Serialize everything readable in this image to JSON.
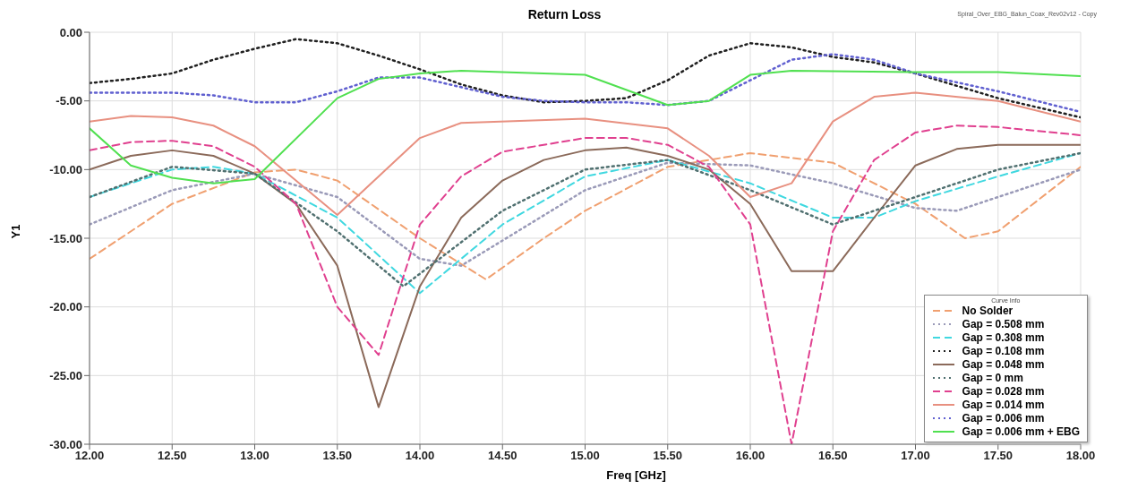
{
  "chart_data": {
    "type": "line",
    "title": "Return Loss",
    "xlabel": "Freq [GHz]",
    "ylabel": "Y1",
    "legend_title": "Curve Info",
    "annotations": [
      "Spiral_Over_EBG_Balun_Coax_Rev02v12 - Copy"
    ],
    "xlim": [
      12,
      18
    ],
    "xticks": [
      {
        "value": 12,
        "label": "12.00"
      },
      {
        "value": 12.5,
        "label": "12.50"
      },
      {
        "value": 13,
        "label": "13.00"
      },
      {
        "value": 13.5,
        "label": "13.50"
      },
      {
        "value": 14,
        "label": "14.00"
      },
      {
        "value": 14.5,
        "label": "14.50"
      },
      {
        "value": 15,
        "label": "15.00"
      },
      {
        "value": 15.5,
        "label": "15.50"
      },
      {
        "value": 16,
        "label": "16.00"
      },
      {
        "value": 16.5,
        "label": "16.50"
      },
      {
        "value": 17,
        "label": "17.00"
      },
      {
        "value": 17.5,
        "label": "17.50"
      },
      {
        "value": 18,
        "label": "18.00"
      }
    ],
    "ylim": [
      -30,
      0
    ],
    "yticks": [
      {
        "value": -30,
        "label": "-30.00"
      },
      {
        "value": -25,
        "label": "-25.00"
      },
      {
        "value": -20,
        "label": "-20.00"
      },
      {
        "value": -15,
        "label": "-15.00"
      },
      {
        "value": -10,
        "label": "-10.00"
      },
      {
        "value": -5,
        "label": "-5.00"
      },
      {
        "value": 0,
        "label": "0.00"
      }
    ],
    "grid": true,
    "legend": "bottom right",
    "marker": "none",
    "series": [
      {
        "name": "No Solder",
        "color": "#f0a070",
        "line_style": "dashed",
        "x": [
          12,
          12.5,
          13,
          13.25,
          13.5,
          14,
          14.4,
          14.75,
          15,
          15.5,
          16,
          16.5,
          17,
          17.3,
          17.5,
          18
        ],
        "values": [
          -16.5,
          -12.5,
          -10.2,
          -10,
          -10.8,
          -15,
          -18,
          -15,
          -13,
          -9.8,
          -8.8,
          -9.5,
          -12.5,
          -15,
          -14.5,
          -9.8
        ]
      },
      {
        "name": "Gap = 0.508 mm",
        "color": "#9a9ab8",
        "line_style": "dotted",
        "x": [
          12,
          12.5,
          13,
          13.5,
          14,
          14.25,
          15,
          15.5,
          16,
          16.5,
          17,
          17.25,
          17.5,
          18
        ],
        "values": [
          -14,
          -11.5,
          -10.3,
          -12,
          -16.5,
          -17,
          -11.5,
          -9.5,
          -9.7,
          -11,
          -12.8,
          -13,
          -12,
          -10
        ]
      },
      {
        "name": "Gap = 0.308 mm",
        "color": "#40d8e0",
        "line_style": "dashed",
        "x": [
          12,
          12.5,
          12.75,
          13,
          13.5,
          14,
          14.5,
          15,
          15.5,
          16,
          16.5,
          16.75,
          17,
          17.5,
          18
        ],
        "values": [
          -12,
          -10,
          -9.8,
          -10.3,
          -13.5,
          -19,
          -14,
          -10.5,
          -9.3,
          -11,
          -13.5,
          -13.5,
          -12.3,
          -10.5,
          -8.8
        ]
      },
      {
        "name": "Gap = 0.108 mm",
        "color": "#202020",
        "line_style": "dotted",
        "x": [
          12,
          12.25,
          12.5,
          12.75,
          13,
          13.25,
          13.5,
          13.75,
          14,
          14.25,
          14.5,
          14.75,
          15,
          15.25,
          15.5,
          15.75,
          16,
          16.25,
          16.5,
          16.75,
          17,
          17.5,
          18
        ],
        "values": [
          -3.7,
          -3.4,
          -3,
          -2,
          -1.2,
          -0.5,
          -0.8,
          -1.7,
          -2.7,
          -3.8,
          -4.6,
          -5.1,
          -5,
          -4.8,
          -3.5,
          -1.7,
          -0.8,
          -1.1,
          -1.8,
          -2.2,
          -3,
          -4.8,
          -6.2
        ]
      },
      {
        "name": "Gap = 0.048 mm",
        "color": "#8b6a5a",
        "line_style": "solid",
        "x": [
          12,
          12.25,
          12.5,
          12.75,
          13,
          13.25,
          13.5,
          13.75,
          14,
          14.25,
          14.5,
          14.75,
          15,
          15.25,
          15.5,
          15.75,
          16,
          16.25,
          16.5,
          16.75,
          17,
          17.25,
          17.5,
          18
        ],
        "values": [
          -10,
          -9,
          -8.6,
          -9,
          -10.3,
          -12.5,
          -17,
          -27.3,
          -18.5,
          -13.5,
          -10.8,
          -9.3,
          -8.6,
          -8.4,
          -9,
          -10,
          -12.5,
          -17.4,
          -17.4,
          -13.5,
          -9.7,
          -8.5,
          -8.2,
          -8.2
        ]
      },
      {
        "name": "Gap = 0 mm",
        "color": "#507070",
        "line_style": "dotted",
        "x": [
          12,
          12.5,
          13,
          13.5,
          13.9,
          14.5,
          15,
          15.5,
          16,
          16.5,
          17,
          17.5,
          18
        ],
        "values": [
          -12,
          -9.8,
          -10.3,
          -14.5,
          -18.5,
          -13,
          -10,
          -9.3,
          -11.5,
          -14,
          -12,
          -10,
          -8.8
        ]
      },
      {
        "name": "Gap = 0.028 mm",
        "color": "#e0408f",
        "line_style": "dashed",
        "x": [
          12,
          12.25,
          12.5,
          12.75,
          13,
          13.25,
          13.5,
          13.75,
          14,
          14.25,
          14.5,
          15,
          15.25,
          15.5,
          15.75,
          16,
          16.25,
          16.5,
          16.75,
          17,
          17.25,
          17.5,
          18
        ],
        "values": [
          -8.6,
          -8,
          -7.9,
          -8.3,
          -9.8,
          -12.5,
          -20,
          -23.5,
          -14,
          -10.5,
          -8.7,
          -7.7,
          -7.7,
          -8.2,
          -9.8,
          -14,
          -30,
          -14.5,
          -9.3,
          -7.3,
          -6.8,
          -6.9,
          -7.5
        ]
      },
      {
        "name": "Gap = 0.014 mm",
        "color": "#e89080",
        "line_style": "solid",
        "x": [
          12,
          12.25,
          12.5,
          12.75,
          13,
          13.5,
          14,
          14.25,
          15,
          15.5,
          15.75,
          16,
          16.25,
          16.5,
          16.75,
          17,
          17.5,
          18
        ],
        "values": [
          -6.5,
          -6.1,
          -6.2,
          -6.8,
          -8.3,
          -13.3,
          -7.7,
          -6.6,
          -6.3,
          -7,
          -9,
          -12,
          -11,
          -6.5,
          -4.7,
          -4.4,
          -5,
          -6.5
        ]
      },
      {
        "name": "Gap = 0.006 mm",
        "color": "#6060d0",
        "line_style": "dotted",
        "x": [
          12,
          12.5,
          12.75,
          13,
          13.25,
          13.5,
          13.75,
          14,
          14.25,
          14.5,
          14.75,
          15,
          15.25,
          15.5,
          15.75,
          16,
          16.25,
          16.5,
          16.75,
          17,
          17.5,
          18
        ],
        "values": [
          -4.4,
          -4.4,
          -4.6,
          -5.1,
          -5.1,
          -4.3,
          -3.3,
          -3.3,
          -4,
          -4.7,
          -5,
          -5.1,
          -5.1,
          -5.3,
          -5,
          -3.5,
          -2,
          -1.6,
          -2,
          -3,
          -4.3,
          -5.8
        ]
      },
      {
        "name": "Gap = 0.006 mm + EBG",
        "color": "#50e050",
        "line_style": "solid",
        "x": [
          12,
          12.25,
          12.5,
          12.75,
          13,
          13.5,
          13.75,
          14,
          14.25,
          15,
          15.5,
          15.75,
          16,
          16.25,
          17,
          17.5,
          18
        ],
        "values": [
          -7,
          -9.7,
          -10.6,
          -11,
          -10.7,
          -4.8,
          -3.4,
          -3,
          -2.8,
          -3.1,
          -5.3,
          -5,
          -3.1,
          -2.8,
          -2.9,
          -2.9,
          -3.2
        ]
      }
    ]
  }
}
